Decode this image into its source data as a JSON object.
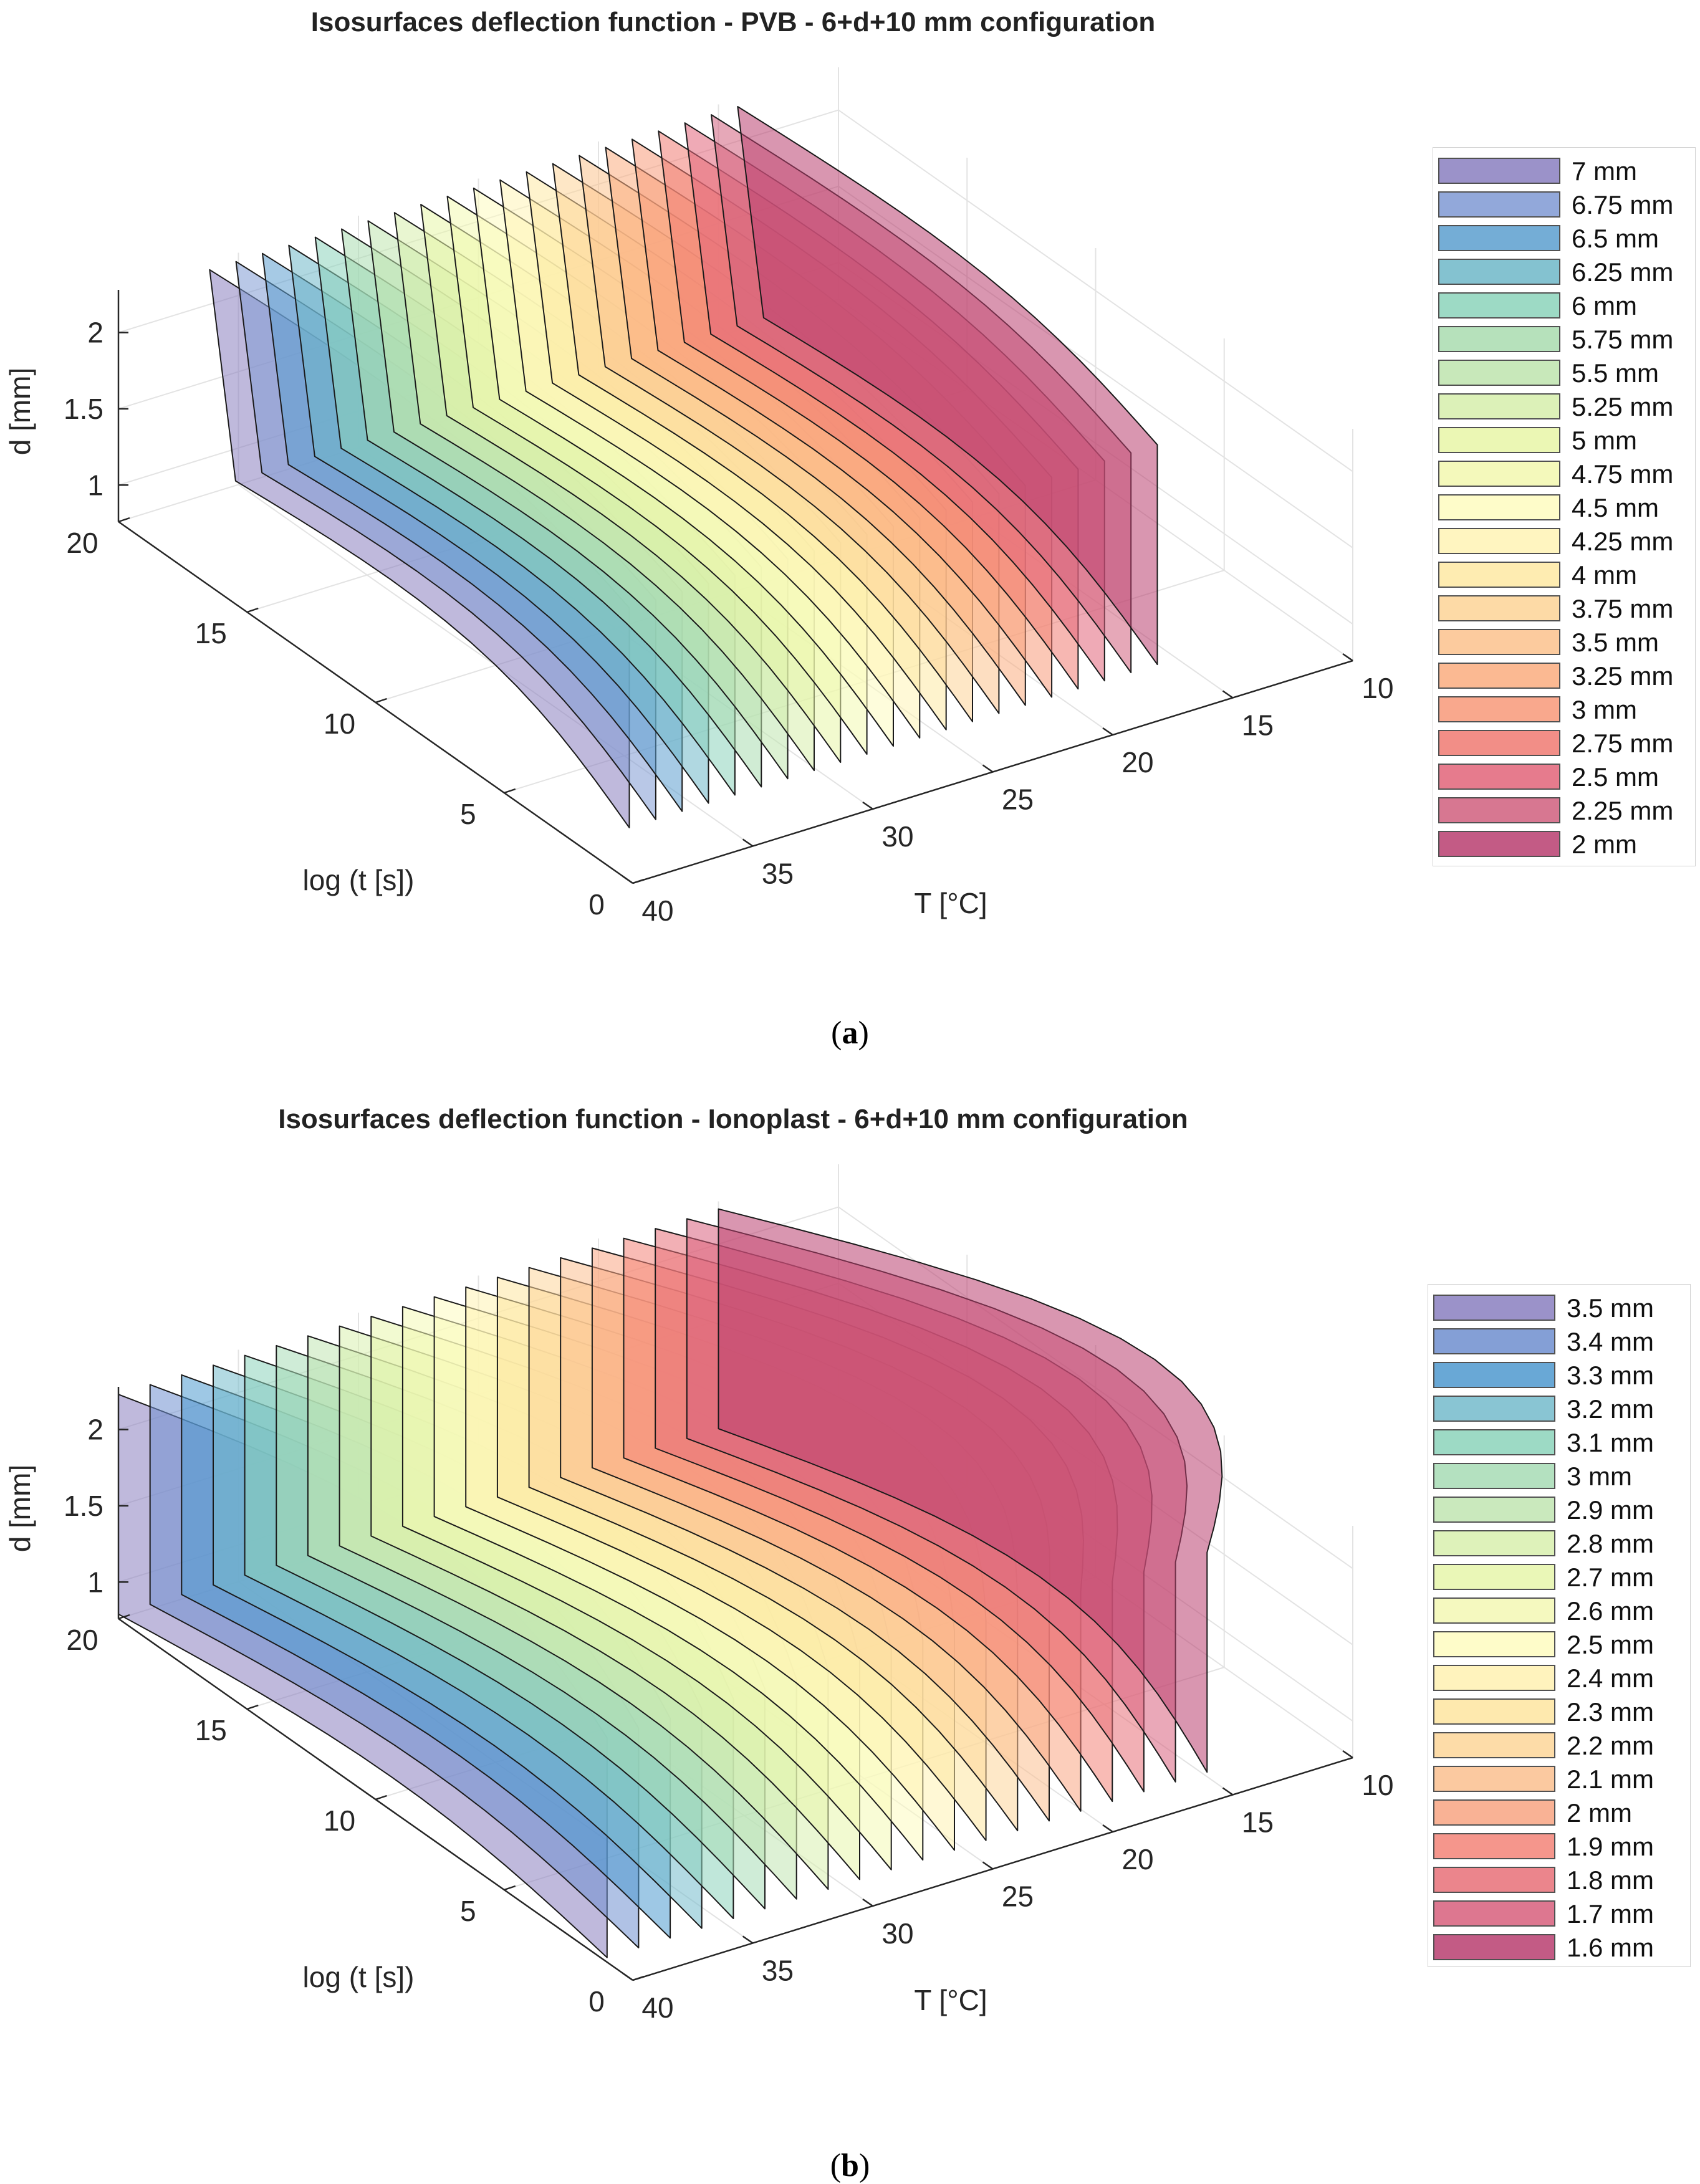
{
  "chart_data": [
    {
      "type": "isosurface-3d",
      "title": "Isosurfaces deflection function - PVB - 6+d+10 mm configuration",
      "caption": "a",
      "xlabel": "T [°C]",
      "ylabel": "log (t [s])",
      "zlabel": "d [mm]",
      "xlim": [
        10,
        40
      ],
      "ylim": [
        0,
        20
      ],
      "zlim": [
        0.76,
        2.28
      ],
      "x_ticks": [
        "10",
        "15",
        "20",
        "25",
        "30",
        "35",
        "40"
      ],
      "y_ticks": [
        "0",
        "5",
        "10",
        "15",
        "20"
      ],
      "z_ticks": [
        "1",
        "1.5",
        "2"
      ],
      "grid": true,
      "legend_position": "right",
      "series": [
        {
          "name": "7 mm",
          "value": 7,
          "color": "#8a80c0"
        },
        {
          "name": "6.75 mm",
          "value": 6.75,
          "color": "#7f9ad4"
        },
        {
          "name": "6.5 mm",
          "value": 6.5,
          "color": "#5c9fd0"
        },
        {
          "name": "6.25 mm",
          "value": 6.25,
          "color": "#6fb8c8"
        },
        {
          "name": "6 mm",
          "value": 6,
          "color": "#8dd4bc"
        },
        {
          "name": "5.75 mm",
          "value": 5.75,
          "color": "#aadcb0"
        },
        {
          "name": "5.5 mm",
          "value": 5.5,
          "color": "#bfe5ae"
        },
        {
          "name": "5.25 mm",
          "value": 5.25,
          "color": "#d7efac"
        },
        {
          "name": "5 mm",
          "value": 5,
          "color": "#e8f6a8"
        },
        {
          "name": "4.75 mm",
          "value": 4.75,
          "color": "#f3f9b0"
        },
        {
          "name": "4.5 mm",
          "value": 4.5,
          "color": "#fefcc0"
        },
        {
          "name": "4.25 mm",
          "value": 4.25,
          "color": "#fff4b6"
        },
        {
          "name": "4 mm",
          "value": 4,
          "color": "#fee9a4"
        },
        {
          "name": "3.75 mm",
          "value": 3.75,
          "color": "#fdd497"
        },
        {
          "name": "3.5 mm",
          "value": 3.5,
          "color": "#fcc28e"
        },
        {
          "name": "3.25 mm",
          "value": 3.25,
          "color": "#fbad80"
        },
        {
          "name": "3 mm",
          "value": 3,
          "color": "#f89a7a"
        },
        {
          "name": "2.75 mm",
          "value": 2.75,
          "color": "#f07b73"
        },
        {
          "name": "2.5 mm",
          "value": 2.5,
          "color": "#e2647a"
        },
        {
          "name": "2.25 mm",
          "value": 2.25,
          "color": "#d1607e"
        },
        {
          "name": "2 mm",
          "value": 2,
          "color": "#b93f70"
        }
      ]
    },
    {
      "type": "isosurface-3d",
      "title": "Isosurfaces deflection function - Ionoplast - 6+d+10 mm configuration",
      "caption": "b",
      "xlabel": "T [°C]",
      "ylabel": "log (t [s])",
      "zlabel": "d [mm]",
      "xlim": [
        10,
        40
      ],
      "ylim": [
        0,
        20
      ],
      "zlim": [
        0.76,
        2.28
      ],
      "x_ticks": [
        "10",
        "15",
        "20",
        "25",
        "30",
        "35",
        "40"
      ],
      "y_ticks": [
        "0",
        "5",
        "10",
        "15",
        "20"
      ],
      "z_ticks": [
        "1",
        "1.5",
        "2"
      ],
      "grid": true,
      "legend_position": "right",
      "series": [
        {
          "name": "3.5 mm",
          "value": 3.5,
          "color": "#8a80c0"
        },
        {
          "name": "3.4 mm",
          "value": 3.4,
          "color": "#6f8fd0"
        },
        {
          "name": "3.3 mm",
          "value": 3.3,
          "color": "#4f9ad0"
        },
        {
          "name": "3.2 mm",
          "value": 3.2,
          "color": "#75bccc"
        },
        {
          "name": "3.1 mm",
          "value": 3.1,
          "color": "#8dd4bc"
        },
        {
          "name": "3 mm",
          "value": 3,
          "color": "#a8dcb6"
        },
        {
          "name": "2.9 mm",
          "value": 2.9,
          "color": "#c1e6b2"
        },
        {
          "name": "2.8 mm",
          "value": 2.8,
          "color": "#d9f0ae"
        },
        {
          "name": "2.7 mm",
          "value": 2.7,
          "color": "#e7f6ab"
        },
        {
          "name": "2.6 mm",
          "value": 2.6,
          "color": "#f4f9b4"
        },
        {
          "name": "2.5 mm",
          "value": 2.5,
          "color": "#fefcc0"
        },
        {
          "name": "2.4 mm",
          "value": 2.4,
          "color": "#fff2b2"
        },
        {
          "name": "2.3 mm",
          "value": 2.3,
          "color": "#fee6a1"
        },
        {
          "name": "2.2 mm",
          "value": 2.2,
          "color": "#fdd69a"
        },
        {
          "name": "2.1 mm",
          "value": 2.1,
          "color": "#fbc090"
        },
        {
          "name": "2 mm",
          "value": 2,
          "color": "#f9a583"
        },
        {
          "name": "1.9 mm",
          "value": 1.9,
          "color": "#f48478"
        },
        {
          "name": "1.8 mm",
          "value": 1.8,
          "color": "#e87079"
        },
        {
          "name": "1.7 mm",
          "value": 1.7,
          "color": "#d8607d"
        },
        {
          "name": "1.6 mm",
          "value": 1.6,
          "color": "#b93f70"
        }
      ]
    }
  ]
}
